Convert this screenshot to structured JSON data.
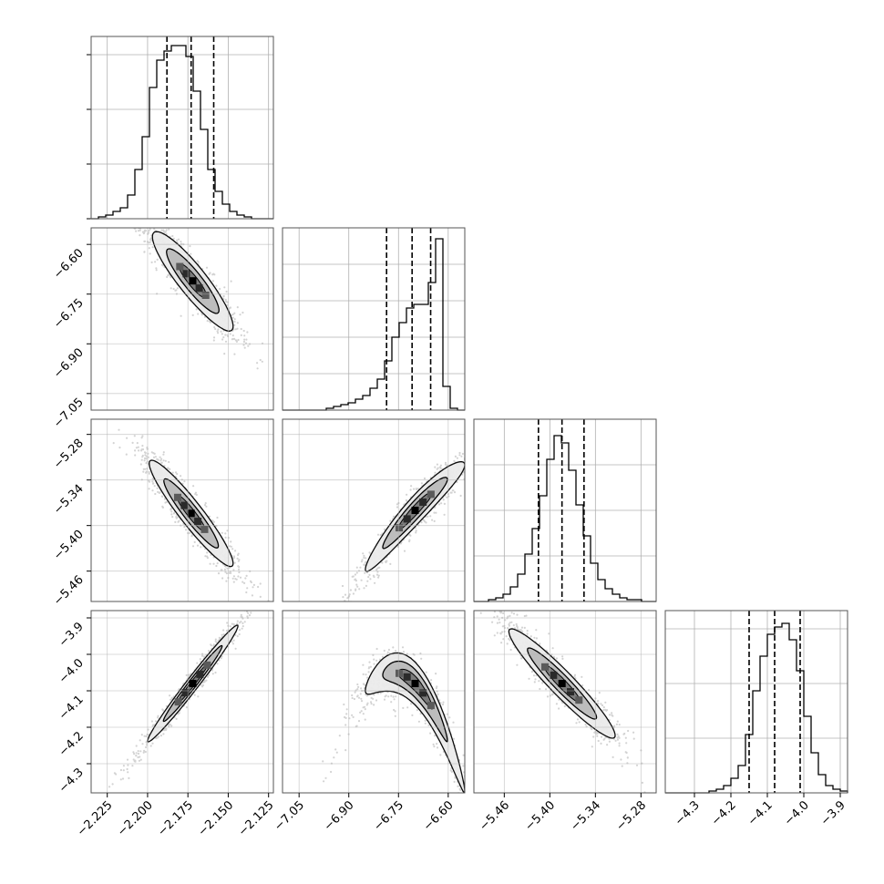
{
  "chart_data": {
    "type": "corner",
    "title": "",
    "parameters": [
      {
        "name": "",
        "range": [
          -2.235,
          -2.122
        ],
        "ticks": [
          "−2.225",
          "−2.200",
          "−2.175",
          "−2.150",
          "−2.125"
        ],
        "tick_values": [
          -2.225,
          -2.2,
          -2.175,
          -2.15,
          -2.125
        ],
        "quantiles": [
          -2.188,
          -2.173,
          -2.159
        ]
      },
      {
        "name": "",
        "range": [
          -7.1,
          -6.55
        ],
        "ticks": [
          "−7.05",
          "−6.90",
          "−6.75",
          "−6.60"
        ],
        "tick_values": [
          -7.05,
          -6.9,
          -6.75,
          -6.6
        ],
        "quantiles": [
          -6.786,
          -6.709,
          -6.653
        ]
      },
      {
        "name": "",
        "range": [
          -5.5,
          -5.26
        ],
        "ticks": [
          "−5.46",
          "−5.40",
          "−5.34",
          "−5.28"
        ],
        "tick_values": [
          -5.46,
          -5.4,
          -5.34,
          -5.28
        ],
        "quantiles": [
          -5.415,
          -5.384,
          -5.355
        ]
      },
      {
        "name": "",
        "range": [
          -4.38,
          -3.88
        ],
        "ticks": [
          "−4.3",
          "−4.2",
          "−4.1",
          "−4.0",
          "−3.9"
        ],
        "tick_values": [
          -4.3,
          -4.2,
          -4.1,
          -4.0,
          -3.9
        ],
        "quantiles": [
          -4.15,
          -4.08,
          -4.01
        ]
      }
    ],
    "histograms": [
      {
        "param": 0,
        "counts": [
          0,
          1,
          2,
          4,
          6,
          13,
          27,
          45,
          72,
          87,
          92,
          95,
          95,
          89,
          70,
          49,
          27,
          15,
          8,
          4,
          2,
          1,
          0,
          0,
          0
        ],
        "ylim": [
          0,
          100
        ],
        "ytick_values": [
          0,
          30,
          60,
          90
        ]
      },
      {
        "param": 1,
        "counts": [
          0,
          0,
          0,
          0,
          0,
          0,
          1,
          2,
          3,
          4,
          6,
          8,
          12,
          17,
          27,
          40,
          48,
          56,
          58,
          58,
          70,
          94,
          13,
          1,
          0
        ],
        "ylim": [
          0,
          100
        ],
        "ytick_values": [
          0,
          20,
          40,
          60,
          80
        ]
      },
      {
        "param": 2,
        "counts": [
          0,
          0,
          1,
          2,
          4,
          8,
          15,
          26,
          40,
          58,
          78,
          91,
          87,
          72,
          53,
          36,
          21,
          12,
          7,
          4,
          2,
          1,
          1,
          0,
          0
        ],
        "ylim": [
          0,
          100
        ],
        "ytick_values": [
          0,
          25,
          50,
          75
        ]
      },
      {
        "param": 3,
        "counts": [
          0,
          0,
          0,
          0,
          0,
          0,
          1,
          2,
          4,
          8,
          15,
          32,
          56,
          75,
          87,
          91,
          93,
          84,
          67,
          42,
          22,
          10,
          4,
          2,
          1
        ],
        "ylim": [
          0,
          100
        ],
        "ytick_values": [
          0,
          30,
          60,
          90
        ]
      }
    ],
    "pairs": [
      {
        "x": 0,
        "y": 1,
        "mean": [
          -2.172,
          -6.71
        ],
        "std": [
          0.0125,
          0.075
        ],
        "corr": -0.9,
        "curve": [
          0,
          -3.0
        ]
      },
      {
        "x": 0,
        "y": 2,
        "mean": [
          -2.173,
          -5.384
        ],
        "std": [
          0.013,
          0.035
        ],
        "corr": -0.94,
        "curve": [
          0,
          0
        ]
      },
      {
        "x": 0,
        "y": 3,
        "mean": [
          -2.172,
          -4.08
        ],
        "std": [
          0.014,
          0.08
        ],
        "corr": 0.985,
        "curve": [
          0,
          0
        ]
      },
      {
        "x": 1,
        "y": 2,
        "mean": [
          -6.7,
          -5.38
        ],
        "std": [
          0.075,
          0.036
        ],
        "corr": 0.955,
        "curve": [
          0,
          -0.4
        ]
      },
      {
        "x": 1,
        "y": 3,
        "mean": [
          -6.7,
          -4.08
        ],
        "std": [
          0.075,
          0.075
        ],
        "corr": -0.92,
        "curve": [
          0,
          -7.0
        ]
      },
      {
        "x": 2,
        "y": 3,
        "mean": [
          -5.384,
          -4.08
        ],
        "std": [
          0.035,
          0.075
        ],
        "corr": -0.95,
        "curve": [
          0,
          0
        ]
      }
    ],
    "grid": true,
    "colors": {
      "line": "#000000",
      "grid": "#b0b0b0",
      "points": "#808080",
      "fill_outer": "#ececec",
      "fill_mid": "#bdbdbd",
      "fill_inner": "#7a7a7a",
      "peak": "#000000"
    }
  }
}
